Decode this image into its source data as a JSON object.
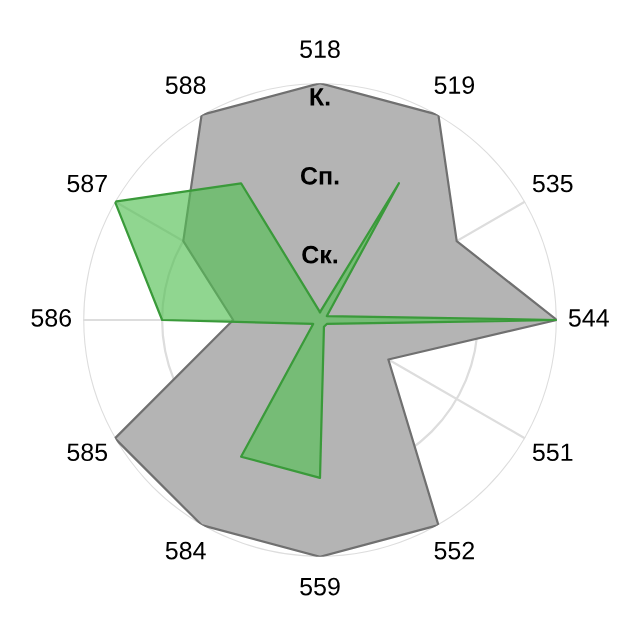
{
  "chart_data": {
    "type": "radar",
    "categories": [
      "518",
      "519",
      "535",
      "544",
      "551",
      "552",
      "559",
      "584",
      "585",
      "586",
      "587",
      "588"
    ],
    "series": [
      {
        "color": "#b4b4b4",
        "values": [
          3,
          3,
          2,
          3,
          1,
          3,
          3,
          3,
          3,
          1.1,
          2,
          3
        ]
      },
      {
        "color": "#55c055",
        "values": [
          0.1,
          2,
          0.1,
          3,
          0.1,
          0.1,
          2,
          2,
          0.1,
          2,
          3,
          2
        ]
      }
    ],
    "ylim": [
      0,
      3
    ],
    "yticks": [
      {
        "value": 1,
        "label": "Ск."
      },
      {
        "value": 2,
        "label": "Сп."
      },
      {
        "value": 3,
        "label": "К."
      }
    ],
    "grid": true
  }
}
